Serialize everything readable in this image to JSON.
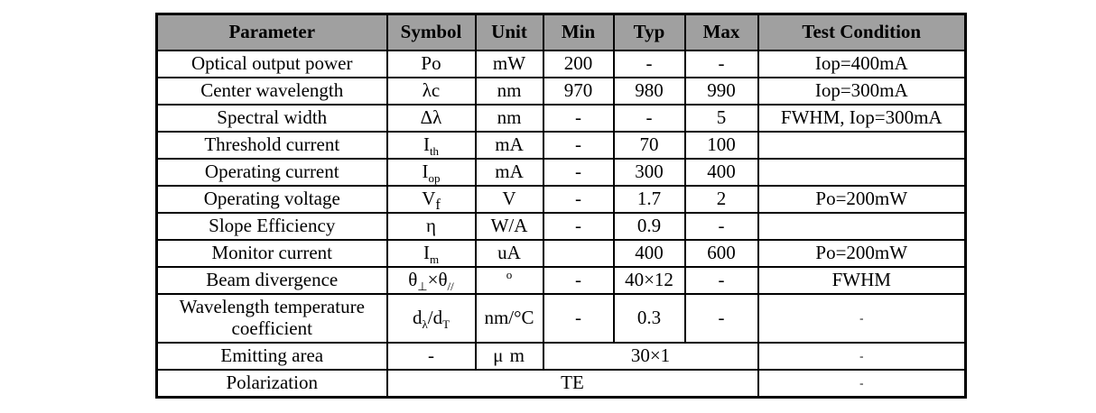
{
  "table": {
    "title": "laser-diode-specification-table",
    "header_bg": "#a0a0a0",
    "border_color": "#000000",
    "headers": [
      "Parameter",
      "Symbol",
      "Unit",
      "Min",
      "Typ",
      "Max",
      "Test Condition"
    ],
    "rows": [
      {
        "parameter": "Optical output power",
        "symbol": [
          {
            "t": "Po"
          }
        ],
        "unit": [
          {
            "t": "mW"
          }
        ],
        "min": "200",
        "typ": "-",
        "max": "-",
        "test": "Iop=400mA"
      },
      {
        "parameter": "Center wavelength",
        "symbol": [
          {
            "t": "λc"
          }
        ],
        "unit": [
          {
            "t": "nm"
          }
        ],
        "min": "970",
        "typ": "980",
        "max": "990",
        "test": "Iop=300mA"
      },
      {
        "parameter": "Spectral width",
        "symbol": [
          {
            "t": "Δλ"
          }
        ],
        "unit": [
          {
            "t": "nm"
          }
        ],
        "min": "-",
        "typ": "-",
        "max": "5",
        "test": "FWHM, Iop=300mA"
      },
      {
        "parameter": "Threshold current",
        "symbol": [
          {
            "t": "I"
          },
          {
            "t": "th",
            "sub": true
          }
        ],
        "unit": [
          {
            "t": "mA"
          }
        ],
        "min": "-",
        "typ": "70",
        "max": "100",
        "test": ""
      },
      {
        "parameter": "Operating current",
        "symbol": [
          {
            "t": "I"
          },
          {
            "t": "op",
            "sub": true
          }
        ],
        "unit": [
          {
            "t": "mA"
          }
        ],
        "min": "-",
        "typ": "300",
        "max": "400",
        "test": ""
      },
      {
        "parameter": "Operating voltage",
        "symbol": [
          {
            "t": "V"
          },
          {
            "t": "f",
            "sub": true
          }
        ],
        "unit": [
          {
            "t": "V"
          }
        ],
        "min": "-",
        "typ": "1.7",
        "max": "2",
        "test": "Po=200mW"
      },
      {
        "parameter": "Slope Efficiency",
        "symbol": [
          {
            "t": "η"
          }
        ],
        "unit": [
          {
            "t": "W/A"
          }
        ],
        "min": "-",
        "typ": "0.9",
        "max": "-",
        "test": ""
      },
      {
        "parameter": "Monitor current",
        "symbol": [
          {
            "t": "I"
          },
          {
            "t": "m",
            "sub": true
          }
        ],
        "unit": [
          {
            "t": "uA"
          }
        ],
        "min": "",
        "typ": "400",
        "max": "600",
        "test": "Po=200mW"
      },
      {
        "parameter": "Beam divergence",
        "symbol": [
          {
            "t": "θ"
          },
          {
            "t": "⊥",
            "sub": true
          },
          {
            "t": "×"
          },
          {
            "t": "θ"
          },
          {
            "t": "//",
            "sub": true
          }
        ],
        "unit": [
          {
            "t": "o",
            "sup": true
          }
        ],
        "min": "-",
        "typ": "40×12",
        "max": "-",
        "test": "FWHM"
      },
      {
        "parameter": "Wavelength temperature coefficient",
        "symbol": [
          {
            "t": "d"
          },
          {
            "t": "λ",
            "sub": true
          },
          {
            "t": "/d"
          },
          {
            "t": "T",
            "sub": true
          }
        ],
        "unit": [
          {
            "t": "nm/°C"
          }
        ],
        "min": "-",
        "typ": "0.3",
        "max": "-",
        "test": "-"
      },
      {
        "parameter": "Emitting area",
        "symbol": [
          {
            "t": "-"
          }
        ],
        "unit": [
          {
            "t": "μ m"
          }
        ],
        "span_value": "30×1",
        "test": "-"
      },
      {
        "parameter": "Polarization",
        "span_value": "TE",
        "test": "-"
      }
    ]
  }
}
